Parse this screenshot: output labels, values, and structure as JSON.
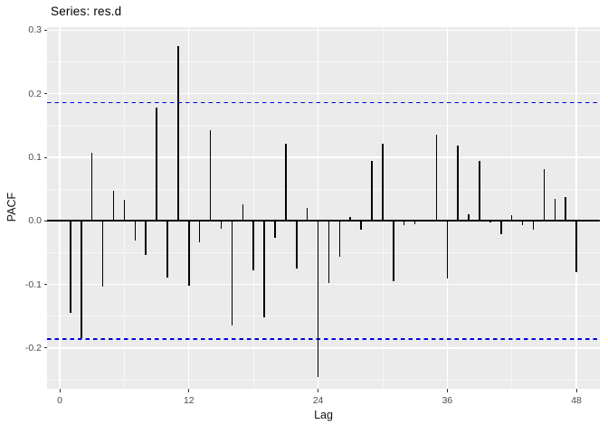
{
  "figure": {
    "title": "Series: res.d",
    "x_axis_title": "Lag",
    "y_axis_title": "PACF"
  },
  "colors": {
    "figure_background": "#FFFFFF",
    "panel_background": "#EBEBEB",
    "gridline": "#FFFFFF",
    "bar": "#000000",
    "zero_line": "#000000",
    "confidence_line": "#0202DD",
    "tick_mark": "#333333",
    "tick_label": "#4D4D4D",
    "axis_title": "#111111",
    "title": "#000000"
  },
  "chart_data": {
    "type": "bar",
    "subtype": "pacf-stick-plot",
    "title": "Series: res.d",
    "xlabel": "Lag",
    "ylabel": "PACF",
    "x": [
      1,
      2,
      3,
      4,
      5,
      6,
      7,
      8,
      9,
      10,
      11,
      12,
      13,
      14,
      15,
      16,
      17,
      18,
      19,
      20,
      21,
      22,
      23,
      24,
      25,
      26,
      27,
      28,
      29,
      30,
      31,
      32,
      33,
      34,
      35,
      36,
      37,
      38,
      39,
      40,
      41,
      42,
      43,
      44,
      45,
      46,
      47,
      48
    ],
    "values": [
      -0.145,
      -0.185,
      0.107,
      -0.103,
      0.048,
      0.033,
      -0.031,
      -0.054,
      0.178,
      -0.089,
      0.275,
      -0.102,
      -0.033,
      0.143,
      -0.012,
      -0.164,
      0.026,
      -0.078,
      -0.152,
      -0.026,
      0.121,
      -0.075,
      0.02,
      -0.245,
      -0.098,
      -0.057,
      0.006,
      -0.014,
      0.094,
      0.121,
      -0.095,
      -0.006,
      -0.005,
      0.002,
      0.136,
      -0.09,
      0.118,
      0.01,
      0.095,
      -0.003,
      -0.021,
      0.009,
      -0.007,
      -0.014,
      0.081,
      0.034,
      0.038,
      -0.08
    ],
    "confidence_bounds": [
      -0.186,
      0.186
    ],
    "x_ticks": [
      0,
      12,
      24,
      36,
      48
    ],
    "x_tick_labels": [
      "0",
      "12",
      "24",
      "36",
      "48"
    ],
    "y_ticks": [
      0.3,
      0.2,
      0.1,
      0.0,
      -0.1,
      -0.2
    ],
    "y_tick_labels": [
      "0.3",
      "0.2",
      "0.1",
      "0.0",
      "-0.1",
      "-0.2"
    ],
    "x_minor_ticks": [
      6,
      18,
      30,
      42
    ],
    "y_minor_ticks": [
      0.25,
      0.15,
      0.05,
      -0.05,
      -0.15,
      -0.25
    ],
    "xlim": [
      -1.18,
      50.18
    ],
    "ylim": [
      -0.2641,
      0.3049
    ],
    "grid": true,
    "legend": false,
    "style": "ggplot-gray-theme"
  }
}
